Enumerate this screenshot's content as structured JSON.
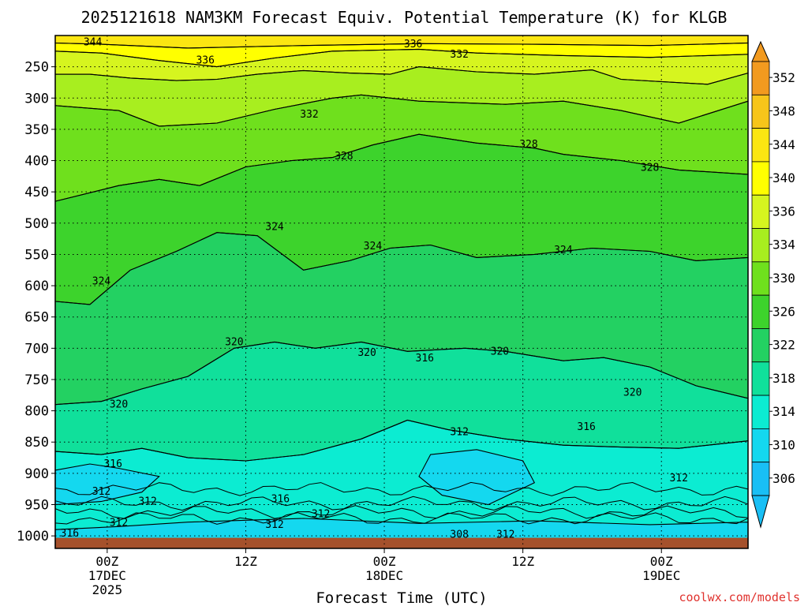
{
  "chart_data": {
    "type": "heatmap",
    "title": "2025121618 NAM3KM Forecast Equiv. Potential Temperature (K) for KLGB",
    "xlabel": "Forecast Time (UTC)",
    "ylabel": "",
    "credit": "coolwx.com/models",
    "y_ticks": [
      250,
      300,
      350,
      400,
      450,
      500,
      550,
      600,
      650,
      700,
      750,
      800,
      850,
      900,
      950,
      1000
    ],
    "y_range_hPa": [
      200,
      1020
    ],
    "x_range_hours": [
      -3,
      117
    ],
    "x_ticks": [
      {
        "hour": 6,
        "lines": [
          "00Z",
          "17DEC",
          "2025"
        ]
      },
      {
        "hour": 30,
        "lines": [
          "12Z"
        ]
      },
      {
        "hour": 54,
        "lines": [
          "00Z",
          "18DEC"
        ]
      },
      {
        "hour": 78,
        "lines": [
          "12Z"
        ]
      },
      {
        "hour": 102,
        "lines": [
          "00Z",
          "19DEC"
        ]
      }
    ],
    "colorbar": {
      "labels": [
        352,
        348,
        344,
        340,
        336,
        334,
        330,
        326,
        322,
        318,
        314,
        310,
        306
      ],
      "bins": [
        {
          "color": "#f29a1f"
        },
        {
          "color": "#f7c51a"
        },
        {
          "color": "#fbe612"
        },
        {
          "color": "#ffff00"
        },
        {
          "color": "#d6f51f"
        },
        {
          "color": "#a8ee1f"
        },
        {
          "color": "#6fe01d"
        },
        {
          "color": "#3dd32c"
        },
        {
          "color": "#23d162"
        },
        {
          "color": "#10e09b"
        },
        {
          "color": "#0cecd2"
        },
        {
          "color": "#14d8ef"
        },
        {
          "color": "#19bff5"
        }
      ]
    },
    "contour_labels": [
      {
        "text": "344",
        "hour": 3.5,
        "p": 211
      },
      {
        "text": "336",
        "hour": 23,
        "p": 240
      },
      {
        "text": "336",
        "hour": 59,
        "p": 214
      },
      {
        "text": "332",
        "hour": 67,
        "p": 230
      },
      {
        "text": "332",
        "hour": 41,
        "p": 326
      },
      {
        "text": "328",
        "hour": 47,
        "p": 393
      },
      {
        "text": "328",
        "hour": 79,
        "p": 374
      },
      {
        "text": "328",
        "hour": 100,
        "p": 411
      },
      {
        "text": "324",
        "hour": 35,
        "p": 506
      },
      {
        "text": "324",
        "hour": 5,
        "p": 593
      },
      {
        "text": "324",
        "hour": 52,
        "p": 537
      },
      {
        "text": "324",
        "hour": 85,
        "p": 543
      },
      {
        "text": "320",
        "hour": 28,
        "p": 690
      },
      {
        "text": "320",
        "hour": 51,
        "p": 707
      },
      {
        "text": "320",
        "hour": 74,
        "p": 705
      },
      {
        "text": "320",
        "hour": 8,
        "p": 790
      },
      {
        "text": "320",
        "hour": 97,
        "p": 771
      },
      {
        "text": "316",
        "hour": 61,
        "p": 716
      },
      {
        "text": "316",
        "hour": 89,
        "p": 826
      },
      {
        "text": "316",
        "hour": 7,
        "p": 885
      },
      {
        "text": "316",
        "hour": 36,
        "p": 941
      },
      {
        "text": "312",
        "hour": 67,
        "p": 834
      },
      {
        "text": "312",
        "hour": 5,
        "p": 929
      },
      {
        "text": "312",
        "hour": 13,
        "p": 945
      },
      {
        "text": "312",
        "hour": 43,
        "p": 965
      },
      {
        "text": "312",
        "hour": 35,
        "p": 982
      },
      {
        "text": "312",
        "hour": 8,
        "p": 979
      },
      {
        "text": "312",
        "hour": 105,
        "p": 908
      },
      {
        "text": "312",
        "hour": 75,
        "p": 998
      },
      {
        "text": "308",
        "hour": 67,
        "p": 998
      },
      {
        "text": "316",
        "hour": -0.5,
        "p": 996
      }
    ],
    "layers": [
      {
        "color": "#fbe612",
        "pts": [
          [
            -3,
            200
          ],
          [
            117,
            200
          ],
          [
            117,
            212
          ],
          [
            100,
            216
          ],
          [
            80,
            214
          ],
          [
            60,
            213
          ],
          [
            40,
            216
          ],
          [
            20,
            220
          ],
          [
            5,
            214
          ],
          [
            -3,
            212
          ]
        ]
      },
      {
        "color": "#ffff00",
        "pts": [
          [
            -3,
            212
          ],
          [
            5,
            214
          ],
          [
            20,
            220
          ],
          [
            40,
            216
          ],
          [
            60,
            213
          ],
          [
            80,
            214
          ],
          [
            100,
            216
          ],
          [
            117,
            212
          ],
          [
            117,
            230
          ],
          [
            100,
            235
          ],
          [
            85,
            232
          ],
          [
            70,
            228
          ],
          [
            60,
            222
          ],
          [
            45,
            225
          ],
          [
            35,
            236
          ],
          [
            25,
            250
          ],
          [
            15,
            240
          ],
          [
            5,
            228
          ],
          [
            -3,
            225
          ]
        ]
      },
      {
        "color": "#d6f51f",
        "pts": [
          [
            -3,
            225
          ],
          [
            5,
            228
          ],
          [
            15,
            240
          ],
          [
            25,
            250
          ],
          [
            35,
            236
          ],
          [
            45,
            225
          ],
          [
            60,
            222
          ],
          [
            70,
            228
          ],
          [
            85,
            232
          ],
          [
            100,
            235
          ],
          [
            117,
            230
          ],
          [
            117,
            260
          ],
          [
            110,
            278
          ],
          [
            95,
            270
          ],
          [
            90,
            255
          ],
          [
            80,
            262
          ],
          [
            70,
            258
          ],
          [
            60,
            250
          ],
          [
            55,
            262
          ],
          [
            48,
            260
          ],
          [
            40,
            256
          ],
          [
            32,
            262
          ],
          [
            25,
            270
          ],
          [
            18,
            272
          ],
          [
            10,
            268
          ],
          [
            3,
            262
          ],
          [
            -3,
            262
          ]
        ]
      },
      {
        "color": "#a8ee1f",
        "pts": [
          [
            -3,
            262
          ],
          [
            3,
            262
          ],
          [
            10,
            268
          ],
          [
            18,
            272
          ],
          [
            25,
            270
          ],
          [
            32,
            262
          ],
          [
            40,
            256
          ],
          [
            48,
            260
          ],
          [
            55,
            262
          ],
          [
            60,
            250
          ],
          [
            70,
            258
          ],
          [
            80,
            262
          ],
          [
            90,
            255
          ],
          [
            95,
            270
          ],
          [
            110,
            278
          ],
          [
            117,
            260
          ],
          [
            117,
            305
          ],
          [
            105,
            340
          ],
          [
            95,
            320
          ],
          [
            85,
            305
          ],
          [
            75,
            310
          ],
          [
            60,
            305
          ],
          [
            50,
            295
          ],
          [
            45,
            300
          ],
          [
            35,
            318
          ],
          [
            25,
            340
          ],
          [
            15,
            345
          ],
          [
            8,
            320
          ],
          [
            -3,
            312
          ]
        ]
      },
      {
        "color": "#6fe01d",
        "pts": [
          [
            -3,
            312
          ],
          [
            8,
            320
          ],
          [
            15,
            345
          ],
          [
            25,
            340
          ],
          [
            35,
            318
          ],
          [
            45,
            300
          ],
          [
            50,
            295
          ],
          [
            60,
            305
          ],
          [
            75,
            310
          ],
          [
            85,
            305
          ],
          [
            95,
            320
          ],
          [
            105,
            340
          ],
          [
            117,
            305
          ],
          [
            117,
            422
          ],
          [
            105,
            415
          ],
          [
            95,
            400
          ],
          [
            85,
            390
          ],
          [
            80,
            380
          ],
          [
            70,
            372
          ],
          [
            60,
            358
          ],
          [
            52,
            375
          ],
          [
            45,
            395
          ],
          [
            38,
            400
          ],
          [
            30,
            410
          ],
          [
            22,
            440
          ],
          [
            15,
            430
          ],
          [
            8,
            440
          ],
          [
            -3,
            465
          ]
        ]
      },
      {
        "color": "#3dd32c",
        "pts": [
          [
            -3,
            465
          ],
          [
            8,
            440
          ],
          [
            15,
            430
          ],
          [
            22,
            440
          ],
          [
            30,
            410
          ],
          [
            38,
            400
          ],
          [
            45,
            395
          ],
          [
            52,
            375
          ],
          [
            60,
            358
          ],
          [
            70,
            372
          ],
          [
            80,
            380
          ],
          [
            85,
            390
          ],
          [
            95,
            400
          ],
          [
            105,
            415
          ],
          [
            117,
            422
          ],
          [
            117,
            555
          ],
          [
            108,
            560
          ],
          [
            100,
            545
          ],
          [
            90,
            540
          ],
          [
            80,
            550
          ],
          [
            70,
            555
          ],
          [
            62,
            535
          ],
          [
            55,
            540
          ],
          [
            48,
            560
          ],
          [
            40,
            575
          ],
          [
            32,
            520
          ],
          [
            25,
            515
          ],
          [
            18,
            545
          ],
          [
            10,
            575
          ],
          [
            3,
            630
          ],
          [
            -3,
            625
          ]
        ]
      },
      {
        "color": "#23d162",
        "pts": [
          [
            -3,
            625
          ],
          [
            3,
            630
          ],
          [
            10,
            575
          ],
          [
            18,
            545
          ],
          [
            25,
            515
          ],
          [
            32,
            520
          ],
          [
            40,
            575
          ],
          [
            48,
            560
          ],
          [
            55,
            540
          ],
          [
            62,
            535
          ],
          [
            70,
            555
          ],
          [
            80,
            550
          ],
          [
            90,
            540
          ],
          [
            100,
            545
          ],
          [
            108,
            560
          ],
          [
            117,
            555
          ],
          [
            117,
            780
          ],
          [
            108,
            760
          ],
          [
            100,
            730
          ],
          [
            92,
            715
          ],
          [
            85,
            720
          ],
          [
            75,
            705
          ],
          [
            68,
            700
          ],
          [
            58,
            705
          ],
          [
            50,
            690
          ],
          [
            42,
            700
          ],
          [
            35,
            690
          ],
          [
            28,
            700
          ],
          [
            20,
            745
          ],
          [
            12,
            765
          ],
          [
            5,
            785
          ],
          [
            -3,
            790
          ]
        ]
      },
      {
        "color": "#10e09b",
        "pts": [
          [
            -3,
            790
          ],
          [
            5,
            785
          ],
          [
            12,
            765
          ],
          [
            20,
            745
          ],
          [
            28,
            700
          ],
          [
            35,
            690
          ],
          [
            42,
            700
          ],
          [
            50,
            690
          ],
          [
            58,
            705
          ],
          [
            68,
            700
          ],
          [
            75,
            705
          ],
          [
            85,
            720
          ],
          [
            92,
            715
          ],
          [
            100,
            730
          ],
          [
            108,
            760
          ],
          [
            117,
            780
          ],
          [
            117,
            848
          ],
          [
            105,
            860
          ],
          [
            95,
            858
          ],
          [
            85,
            855
          ],
          [
            75,
            845
          ],
          [
            65,
            830
          ],
          [
            58,
            815
          ],
          [
            50,
            845
          ],
          [
            40,
            870
          ],
          [
            30,
            880
          ],
          [
            20,
            875
          ],
          [
            12,
            860
          ],
          [
            5,
            870
          ],
          [
            -3,
            865
          ]
        ]
      },
      {
        "color": "#0cecd2",
        "pts": [
          [
            -3,
            865
          ],
          [
            5,
            870
          ],
          [
            12,
            860
          ],
          [
            20,
            875
          ],
          [
            30,
            880
          ],
          [
            40,
            870
          ],
          [
            50,
            845
          ],
          [
            58,
            815
          ],
          [
            65,
            830
          ],
          [
            75,
            845
          ],
          [
            85,
            855
          ],
          [
            95,
            858
          ],
          [
            105,
            860
          ],
          [
            117,
            848
          ],
          [
            117,
            1020
          ],
          [
            -3,
            1020
          ]
        ]
      },
      {
        "color": "#14d8ef",
        "pts": [
          [
            -3,
            895
          ],
          [
            3,
            885
          ],
          [
            8,
            892
          ],
          [
            15,
            905
          ],
          [
            12,
            930
          ],
          [
            5,
            945
          ],
          [
            -3,
            950
          ]
        ]
      },
      {
        "color": "#14d8ef",
        "pts": [
          [
            62,
            870
          ],
          [
            70,
            862
          ],
          [
            78,
            880
          ],
          [
            80,
            915
          ],
          [
            72,
            950
          ],
          [
            64,
            935
          ],
          [
            60,
            905
          ]
        ]
      },
      {
        "color": "#14d8ef",
        "pts": [
          [
            20,
            978
          ],
          [
            40,
            972
          ],
          [
            60,
            980
          ],
          [
            80,
            976
          ],
          [
            100,
            982
          ],
          [
            117,
            978
          ],
          [
            117,
            1020
          ],
          [
            -3,
            1020
          ],
          [
            -3,
            990
          ],
          [
            8,
            985
          ]
        ]
      }
    ]
  }
}
